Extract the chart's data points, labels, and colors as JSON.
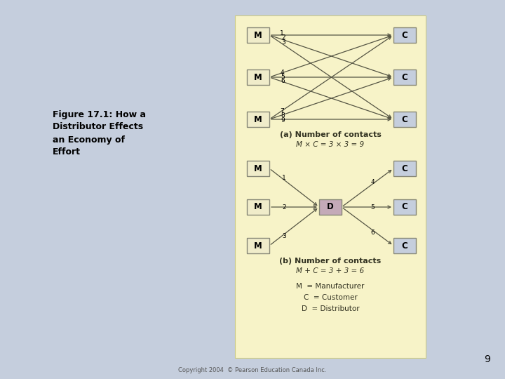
{
  "bg_color": "#c5cedd",
  "panel_color": "#f7f3c8",
  "box_M_color": "#f0ecca",
  "box_C_color": "#c5cedd",
  "box_D_color": "#c4aab8",
  "box_border": "#888877",
  "title_text": "Figure 17.1: How a\nDistributor Effects\nan Economy of\nEffort",
  "copyright_text": "Copyright 2004  © Pearson Education Canada Inc.",
  "page_number": "9",
  "section_a_title": "(a) Number of contacts",
  "section_a_formula": "M × C = 3 × 3 = 9",
  "section_b_title": "(b) Number of contacts",
  "section_b_formula": "M + C = 3 + 3 = 6",
  "legend_M": "M  = Manufacturer",
  "legend_C": "C  = Customer",
  "legend_D": "D  = Distributor"
}
